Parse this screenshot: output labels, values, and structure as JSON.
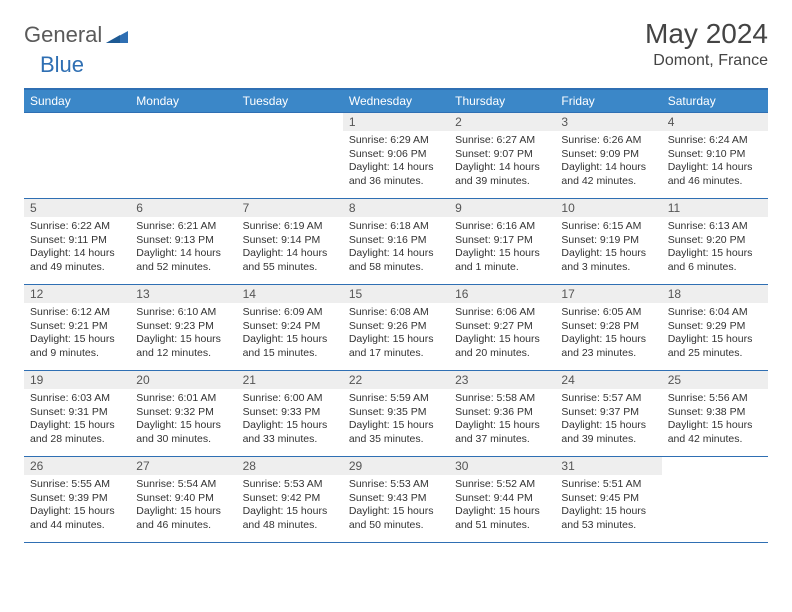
{
  "brand": {
    "part1": "General",
    "part2": "Blue"
  },
  "title": "May 2024",
  "location": "Domont, France",
  "theme": {
    "header_bg": "#3b87c8",
    "header_text": "#ffffff",
    "rule_color": "#2f6fb3",
    "daynum_bg": "#eeeeee",
    "body_text": "#333333",
    "page_bg": "#ffffff",
    "title_color": "#444444",
    "logo_gray": "#5a5a5a",
    "logo_blue": "#2f6fb3"
  },
  "day_labels": [
    "Sunday",
    "Monday",
    "Tuesday",
    "Wednesday",
    "Thursday",
    "Friday",
    "Saturday"
  ],
  "weeks": [
    [
      {
        "n": "",
        "sr": "",
        "ss": "",
        "dl": ""
      },
      {
        "n": "",
        "sr": "",
        "ss": "",
        "dl": ""
      },
      {
        "n": "",
        "sr": "",
        "ss": "",
        "dl": ""
      },
      {
        "n": "1",
        "sr": "Sunrise: 6:29 AM",
        "ss": "Sunset: 9:06 PM",
        "dl": "Daylight: 14 hours and 36 minutes."
      },
      {
        "n": "2",
        "sr": "Sunrise: 6:27 AM",
        "ss": "Sunset: 9:07 PM",
        "dl": "Daylight: 14 hours and 39 minutes."
      },
      {
        "n": "3",
        "sr": "Sunrise: 6:26 AM",
        "ss": "Sunset: 9:09 PM",
        "dl": "Daylight: 14 hours and 42 minutes."
      },
      {
        "n": "4",
        "sr": "Sunrise: 6:24 AM",
        "ss": "Sunset: 9:10 PM",
        "dl": "Daylight: 14 hours and 46 minutes."
      }
    ],
    [
      {
        "n": "5",
        "sr": "Sunrise: 6:22 AM",
        "ss": "Sunset: 9:11 PM",
        "dl": "Daylight: 14 hours and 49 minutes."
      },
      {
        "n": "6",
        "sr": "Sunrise: 6:21 AM",
        "ss": "Sunset: 9:13 PM",
        "dl": "Daylight: 14 hours and 52 minutes."
      },
      {
        "n": "7",
        "sr": "Sunrise: 6:19 AM",
        "ss": "Sunset: 9:14 PM",
        "dl": "Daylight: 14 hours and 55 minutes."
      },
      {
        "n": "8",
        "sr": "Sunrise: 6:18 AM",
        "ss": "Sunset: 9:16 PM",
        "dl": "Daylight: 14 hours and 58 minutes."
      },
      {
        "n": "9",
        "sr": "Sunrise: 6:16 AM",
        "ss": "Sunset: 9:17 PM",
        "dl": "Daylight: 15 hours and 1 minute."
      },
      {
        "n": "10",
        "sr": "Sunrise: 6:15 AM",
        "ss": "Sunset: 9:19 PM",
        "dl": "Daylight: 15 hours and 3 minutes."
      },
      {
        "n": "11",
        "sr": "Sunrise: 6:13 AM",
        "ss": "Sunset: 9:20 PM",
        "dl": "Daylight: 15 hours and 6 minutes."
      }
    ],
    [
      {
        "n": "12",
        "sr": "Sunrise: 6:12 AM",
        "ss": "Sunset: 9:21 PM",
        "dl": "Daylight: 15 hours and 9 minutes."
      },
      {
        "n": "13",
        "sr": "Sunrise: 6:10 AM",
        "ss": "Sunset: 9:23 PM",
        "dl": "Daylight: 15 hours and 12 minutes."
      },
      {
        "n": "14",
        "sr": "Sunrise: 6:09 AM",
        "ss": "Sunset: 9:24 PM",
        "dl": "Daylight: 15 hours and 15 minutes."
      },
      {
        "n": "15",
        "sr": "Sunrise: 6:08 AM",
        "ss": "Sunset: 9:26 PM",
        "dl": "Daylight: 15 hours and 17 minutes."
      },
      {
        "n": "16",
        "sr": "Sunrise: 6:06 AM",
        "ss": "Sunset: 9:27 PM",
        "dl": "Daylight: 15 hours and 20 minutes."
      },
      {
        "n": "17",
        "sr": "Sunrise: 6:05 AM",
        "ss": "Sunset: 9:28 PM",
        "dl": "Daylight: 15 hours and 23 minutes."
      },
      {
        "n": "18",
        "sr": "Sunrise: 6:04 AM",
        "ss": "Sunset: 9:29 PM",
        "dl": "Daylight: 15 hours and 25 minutes."
      }
    ],
    [
      {
        "n": "19",
        "sr": "Sunrise: 6:03 AM",
        "ss": "Sunset: 9:31 PM",
        "dl": "Daylight: 15 hours and 28 minutes."
      },
      {
        "n": "20",
        "sr": "Sunrise: 6:01 AM",
        "ss": "Sunset: 9:32 PM",
        "dl": "Daylight: 15 hours and 30 minutes."
      },
      {
        "n": "21",
        "sr": "Sunrise: 6:00 AM",
        "ss": "Sunset: 9:33 PM",
        "dl": "Daylight: 15 hours and 33 minutes."
      },
      {
        "n": "22",
        "sr": "Sunrise: 5:59 AM",
        "ss": "Sunset: 9:35 PM",
        "dl": "Daylight: 15 hours and 35 minutes."
      },
      {
        "n": "23",
        "sr": "Sunrise: 5:58 AM",
        "ss": "Sunset: 9:36 PM",
        "dl": "Daylight: 15 hours and 37 minutes."
      },
      {
        "n": "24",
        "sr": "Sunrise: 5:57 AM",
        "ss": "Sunset: 9:37 PM",
        "dl": "Daylight: 15 hours and 39 minutes."
      },
      {
        "n": "25",
        "sr": "Sunrise: 5:56 AM",
        "ss": "Sunset: 9:38 PM",
        "dl": "Daylight: 15 hours and 42 minutes."
      }
    ],
    [
      {
        "n": "26",
        "sr": "Sunrise: 5:55 AM",
        "ss": "Sunset: 9:39 PM",
        "dl": "Daylight: 15 hours and 44 minutes."
      },
      {
        "n": "27",
        "sr": "Sunrise: 5:54 AM",
        "ss": "Sunset: 9:40 PM",
        "dl": "Daylight: 15 hours and 46 minutes."
      },
      {
        "n": "28",
        "sr": "Sunrise: 5:53 AM",
        "ss": "Sunset: 9:42 PM",
        "dl": "Daylight: 15 hours and 48 minutes."
      },
      {
        "n": "29",
        "sr": "Sunrise: 5:53 AM",
        "ss": "Sunset: 9:43 PM",
        "dl": "Daylight: 15 hours and 50 minutes."
      },
      {
        "n": "30",
        "sr": "Sunrise: 5:52 AM",
        "ss": "Sunset: 9:44 PM",
        "dl": "Daylight: 15 hours and 51 minutes."
      },
      {
        "n": "31",
        "sr": "Sunrise: 5:51 AM",
        "ss": "Sunset: 9:45 PM",
        "dl": "Daylight: 15 hours and 53 minutes."
      },
      {
        "n": "",
        "sr": "",
        "ss": "",
        "dl": ""
      }
    ]
  ]
}
